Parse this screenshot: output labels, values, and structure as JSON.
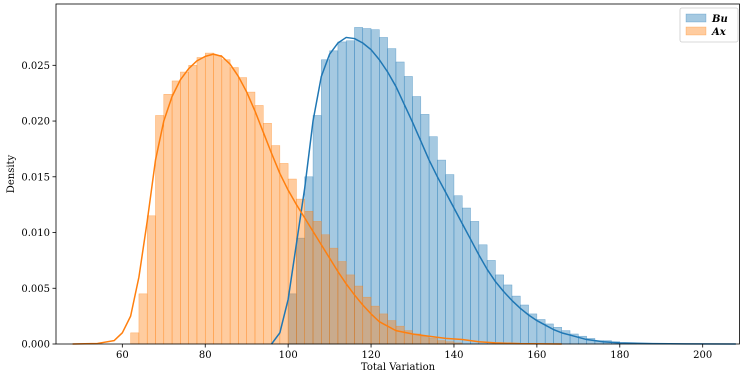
{
  "chart_data": {
    "type": "histogram",
    "xlabel": "Total Variation",
    "ylabel": "Density",
    "xlim": [
      44,
      209
    ],
    "ylim": [
      0,
      0.0305
    ],
    "xticks": [
      60,
      80,
      100,
      120,
      140,
      160,
      180,
      200
    ],
    "yticks": [
      0.0,
      0.005,
      0.01,
      0.015,
      0.02,
      0.025
    ],
    "ytick_labels": [
      "0.000",
      "0.005",
      "0.010",
      "0.015",
      "0.020",
      "0.025"
    ],
    "legend_position": "top-right",
    "bin_width": 2,
    "series": [
      {
        "name": "Bu",
        "color": "#1f77b4",
        "bin_start": 100,
        "densities": [
          0.0045,
          0.0095,
          0.015,
          0.0205,
          0.0255,
          0.0263,
          0.0271,
          0.0272,
          0.0284,
          0.0283,
          0.0282,
          0.0275,
          0.0265,
          0.0253,
          0.024,
          0.0222,
          0.0206,
          0.0186,
          0.0165,
          0.0152,
          0.0133,
          0.0122,
          0.011,
          0.0089,
          0.0075,
          0.0062,
          0.0053,
          0.0043,
          0.0035,
          0.0027,
          0.0022,
          0.0018,
          0.0015,
          0.0012,
          0.0009,
          0.0007,
          0.0005,
          0.0003,
          0.0003,
          0.0002,
          0.0001,
          0.0001
        ],
        "kde": [
          [
            96,
            0.0
          ],
          [
            98,
            0.001
          ],
          [
            100,
            0.004
          ],
          [
            102,
            0.009
          ],
          [
            104,
            0.014
          ],
          [
            106,
            0.02
          ],
          [
            108,
            0.024
          ],
          [
            110,
            0.026
          ],
          [
            112,
            0.027
          ],
          [
            114,
            0.0275
          ],
          [
            116,
            0.0274
          ],
          [
            118,
            0.027
          ],
          [
            120,
            0.0264
          ],
          [
            122,
            0.0255
          ],
          [
            124,
            0.0244
          ],
          [
            126,
            0.0231
          ],
          [
            128,
            0.0215
          ],
          [
            130,
            0.0199
          ],
          [
            132,
            0.0182
          ],
          [
            134,
            0.0165
          ],
          [
            136,
            0.015
          ],
          [
            138,
            0.0136
          ],
          [
            140,
            0.0122
          ],
          [
            142,
            0.0108
          ],
          [
            144,
            0.0094
          ],
          [
            146,
            0.008
          ],
          [
            148,
            0.0067
          ],
          [
            150,
            0.0056
          ],
          [
            152,
            0.0047
          ],
          [
            154,
            0.0039
          ],
          [
            156,
            0.0032
          ],
          [
            158,
            0.0026
          ],
          [
            160,
            0.0021
          ],
          [
            162,
            0.0017
          ],
          [
            164,
            0.0013
          ],
          [
            166,
            0.001
          ],
          [
            168,
            0.0008
          ],
          [
            170,
            0.0006
          ],
          [
            172,
            0.0004
          ],
          [
            176,
            0.0002
          ],
          [
            180,
            0.0001
          ],
          [
            188,
            3e-05
          ],
          [
            196,
            1e-05
          ],
          [
            208,
            0.0
          ]
        ]
      },
      {
        "name": "Ax",
        "color": "#ff7f0e",
        "bin_start": 62,
        "densities": [
          0.001,
          0.0045,
          0.0115,
          0.0205,
          0.0224,
          0.0236,
          0.0244,
          0.025,
          0.0257,
          0.0261,
          0.0259,
          0.0255,
          0.0248,
          0.0239,
          0.0226,
          0.0214,
          0.0198,
          0.0178,
          0.0162,
          0.0148,
          0.013,
          0.0119,
          0.011,
          0.0098,
          0.0086,
          0.0074,
          0.0062,
          0.0052,
          0.0042,
          0.0034,
          0.0027,
          0.0021,
          0.0016,
          0.0012,
          0.0009,
          0.0007,
          0.0005,
          0.0003,
          0.0002,
          0.0001
        ],
        "kde": [
          [
            48,
            0.0
          ],
          [
            54,
            5e-05
          ],
          [
            58,
            0.0003
          ],
          [
            60,
            0.001
          ],
          [
            62,
            0.0025
          ],
          [
            64,
            0.006
          ],
          [
            66,
            0.011
          ],
          [
            68,
            0.0165
          ],
          [
            70,
            0.02
          ],
          [
            72,
            0.0222
          ],
          [
            74,
            0.0237
          ],
          [
            76,
            0.0247
          ],
          [
            78,
            0.0254
          ],
          [
            80,
            0.0258
          ],
          [
            82,
            0.026
          ],
          [
            84,
            0.0258
          ],
          [
            86,
            0.0251
          ],
          [
            88,
            0.024
          ],
          [
            90,
            0.0226
          ],
          [
            92,
            0.0209
          ],
          [
            94,
            0.019
          ],
          [
            96,
            0.0171
          ],
          [
            98,
            0.0153
          ],
          [
            100,
            0.0138
          ],
          [
            102,
            0.0125
          ],
          [
            104,
            0.0113
          ],
          [
            106,
            0.0101
          ],
          [
            108,
            0.0089
          ],
          [
            110,
            0.0077
          ],
          [
            112,
            0.0065
          ],
          [
            114,
            0.0054
          ],
          [
            116,
            0.0044
          ],
          [
            118,
            0.0035
          ],
          [
            120,
            0.0027
          ],
          [
            122,
            0.002
          ],
          [
            126,
            0.0012
          ],
          [
            130,
            0.0009
          ],
          [
            134,
            0.0007
          ],
          [
            138,
            0.0005
          ],
          [
            142,
            0.0004
          ],
          [
            146,
            0.0002
          ],
          [
            150,
            0.0001
          ],
          [
            156,
            3e-05
          ],
          [
            166,
            0.0
          ]
        ]
      }
    ]
  }
}
